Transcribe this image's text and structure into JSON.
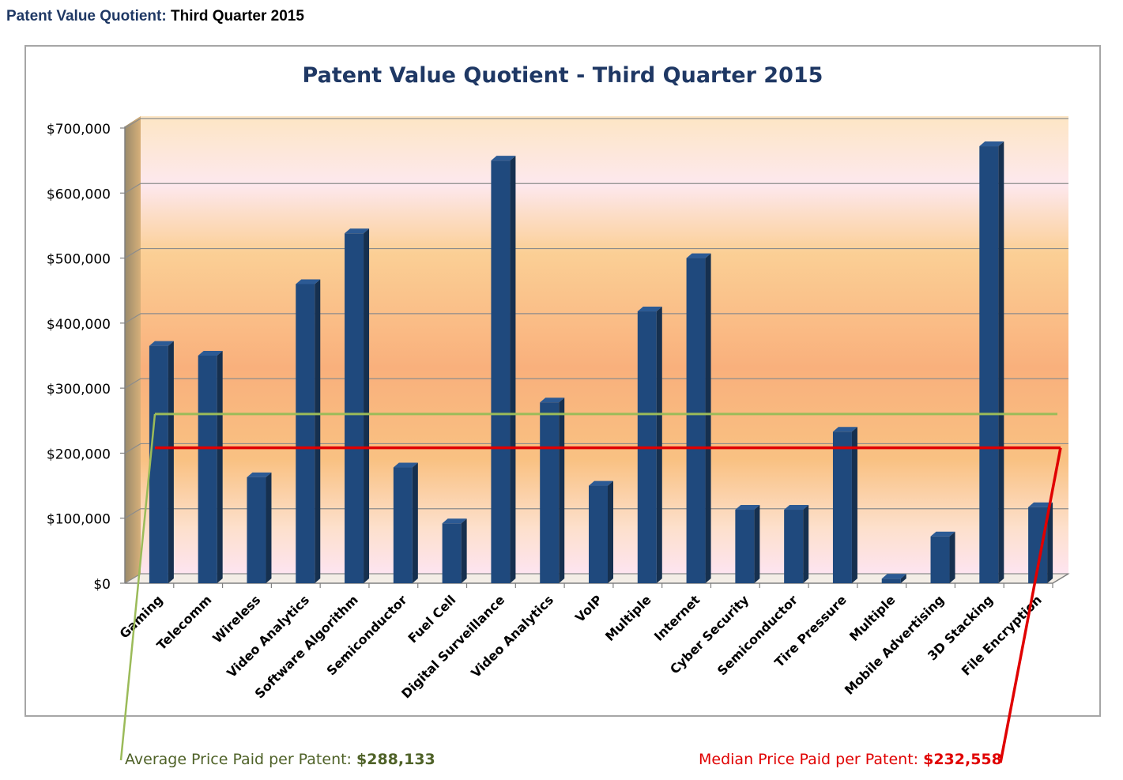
{
  "page": {
    "title_prefix": "Patent Value Quotient:",
    "title_suffix": "Third Quarter 2015"
  },
  "annotations": {
    "average_label": "Average Price Paid per Patent:",
    "average_value": "$288,133",
    "median_label": "Median Price Paid per Patent:",
    "median_value": "$232,558"
  },
  "colors": {
    "bar_front": "#1f497d",
    "bar_side": "#16304f",
    "bar_top": "#2c5a94",
    "average_line": "#9bbb59",
    "median_line": "#e00000",
    "title": "#1f3864"
  },
  "chart_data": {
    "type": "bar",
    "title": "Patent Value Quotient - Third Quarter 2015",
    "xlabel": "",
    "ylabel": "",
    "ylim": [
      0,
      700000
    ],
    "yticks": [
      0,
      100000,
      200000,
      300000,
      400000,
      500000,
      600000,
      700000
    ],
    "ytick_labels": [
      "$0",
      "$100,000",
      "$200,000",
      "$300,000",
      "$400,000",
      "$500,000",
      "$600,000",
      "$700,000"
    ],
    "grid": true,
    "categories": [
      "Gaming",
      "Telecomm",
      "Wireless",
      "Video Analytics",
      "Software Algorithm",
      "Semiconductor",
      "Fuel Cell",
      "Digital Surveillance",
      "Video Analytics",
      "VoIP",
      "Multiple",
      "Internet",
      "Cyber Security",
      "Semiconductor",
      "Tire Pressure",
      "Multiple",
      "Mobile Advertising",
      "3D Stacking",
      "File Encryption"
    ],
    "values": [
      365000,
      350000,
      163000,
      460000,
      538000,
      178000,
      92000,
      650000,
      278000,
      150000,
      418000,
      500000,
      113000,
      113000,
      233000,
      7000,
      72000,
      672000,
      117000
    ],
    "reference_lines": [
      {
        "name": "Average",
        "value": 288133
      },
      {
        "name": "Median",
        "value": 232558
      }
    ]
  }
}
